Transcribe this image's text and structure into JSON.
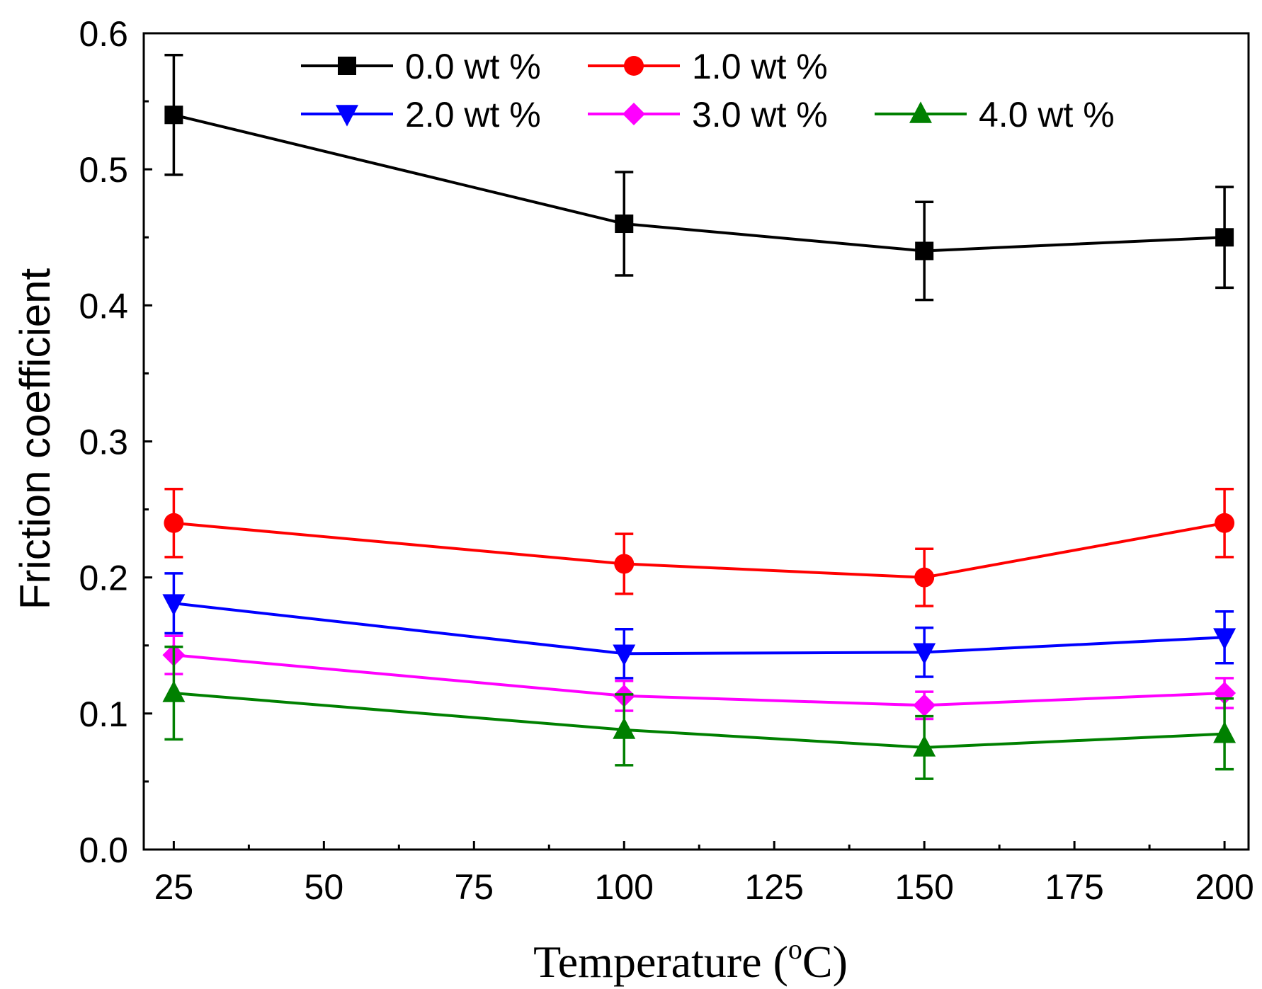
{
  "chart_data": {
    "type": "line",
    "title": "",
    "xlabel": "Temperature (",
    "xlabel_sup": "o",
    "xlabel_tail": "C)",
    "ylabel": "Friction coefficient",
    "xlim": [
      20,
      204
    ],
    "ylim": [
      0,
      0.6
    ],
    "xticks": [
      25,
      50,
      75,
      100,
      125,
      150,
      175,
      200
    ],
    "xtick_labels": [
      "25",
      "50",
      "75",
      "100",
      "125",
      "150",
      "175",
      "200"
    ],
    "yticks": [
      0.0,
      0.1,
      0.2,
      0.3,
      0.4,
      0.5,
      0.6
    ],
    "ytick_labels": [
      "0.0",
      "0.1",
      "0.2",
      "0.3",
      "0.4",
      "0.5",
      "0.6"
    ],
    "x": [
      25,
      100,
      150,
      200
    ],
    "legend_position": "top",
    "series": [
      {
        "name": "0.0 wt %",
        "color": "#000000",
        "marker": "square",
        "values": [
          0.54,
          0.46,
          0.44,
          0.45
        ],
        "errors": [
          0.044,
          0.038,
          0.036,
          0.037
        ]
      },
      {
        "name": "1.0 wt %",
        "color": "#ff0000",
        "marker": "circle",
        "values": [
          0.24,
          0.21,
          0.2,
          0.24
        ],
        "errors": [
          0.025,
          0.022,
          0.021,
          0.025
        ]
      },
      {
        "name": "2.0 wt %",
        "color": "#0000ff",
        "marker": "triangle-down",
        "values": [
          0.181,
          0.144,
          0.145,
          0.156
        ],
        "errors": [
          0.022,
          0.018,
          0.018,
          0.019
        ]
      },
      {
        "name": "3.0 wt %",
        "color": "#ff00ff",
        "marker": "diamond",
        "values": [
          0.143,
          0.113,
          0.106,
          0.115
        ],
        "errors": [
          0.014,
          0.011,
          0.01,
          0.011
        ]
      },
      {
        "name": "4.0 wt %",
        "color": "#008000",
        "marker": "triangle-up",
        "values": [
          0.115,
          0.088,
          0.075,
          0.085
        ],
        "errors": [
          0.034,
          0.026,
          0.023,
          0.026
        ]
      }
    ]
  }
}
